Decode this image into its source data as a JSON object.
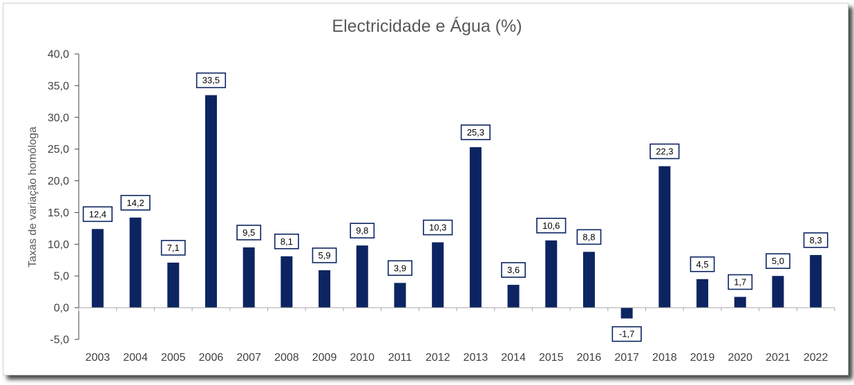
{
  "chart_data": {
    "type": "bar",
    "title": "Electricidade e Água (%)",
    "ylabel": "Taxas de variação homóloga",
    "xlabel": "",
    "categories": [
      "2003",
      "2004",
      "2005",
      "2006",
      "2007",
      "2008",
      "2009",
      "2010",
      "2011",
      "2012",
      "2013",
      "2014",
      "2015",
      "2016",
      "2017",
      "2018",
      "2019",
      "2020",
      "2021",
      "2022"
    ],
    "values": [
      12.4,
      14.2,
      7.1,
      33.5,
      9.5,
      8.1,
      5.9,
      9.8,
      3.9,
      10.3,
      25.3,
      3.6,
      10.6,
      8.8,
      -1.7,
      22.3,
      4.5,
      1.7,
      5.0,
      8.3
    ],
    "value_labels": [
      "12,4",
      "14,2",
      "7,1",
      "33,5",
      "9,5",
      "8,1",
      "5,9",
      "9,8",
      "3,9",
      "10,3",
      "25,3",
      "3,6",
      "10,6",
      "8,8",
      "-1,7",
      "22,3",
      "4,5",
      "1,7",
      "5,0",
      "8,3"
    ],
    "ylim": [
      -5,
      40
    ],
    "yticks": [
      40,
      35,
      30,
      25,
      20,
      15,
      10,
      5,
      0,
      -5
    ],
    "ytick_labels": [
      "40,0",
      "35,0",
      "30,0",
      "25,0",
      "20,0",
      "15,0",
      "10,0",
      "5,0",
      "0,0",
      "-5,0"
    ],
    "grid": false,
    "legend": "none",
    "colors": {
      "bar": "#0c2461",
      "label_border": "#0c2461",
      "axis": "#404040",
      "title": "#595959"
    }
  }
}
